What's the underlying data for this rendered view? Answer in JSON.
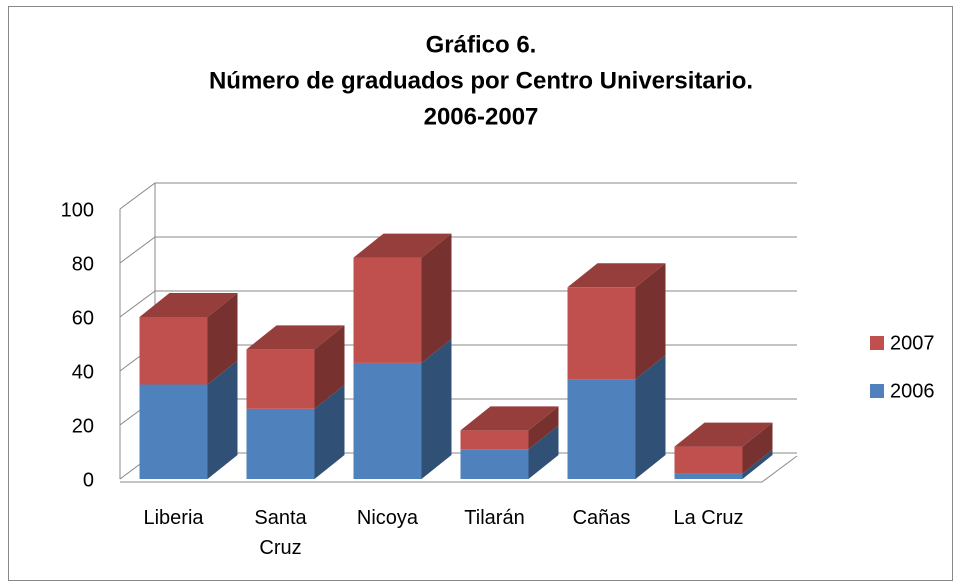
{
  "chart_data": {
    "type": "bar3d_stacked",
    "title": [
      "Gráfico 6.",
      "Número de graduados por Centro Universitario.",
      "2006-2007"
    ],
    "categories": [
      "Liberia",
      "Santa Cruz",
      "Nicoya",
      "Tilarán",
      "Cañas",
      "La Cruz"
    ],
    "series": [
      {
        "name": "2006",
        "color": "#4f81bd",
        "values": [
          35,
          26,
          43,
          11,
          37,
          2
        ]
      },
      {
        "name": "2007",
        "color": "#c0504d",
        "values": [
          25,
          22,
          39,
          7,
          34,
          10
        ]
      }
    ],
    "ylim": [
      0,
      100
    ],
    "yticks": [
      0,
      20,
      40,
      60,
      80,
      100
    ],
    "grid": true,
    "legend": "right"
  }
}
